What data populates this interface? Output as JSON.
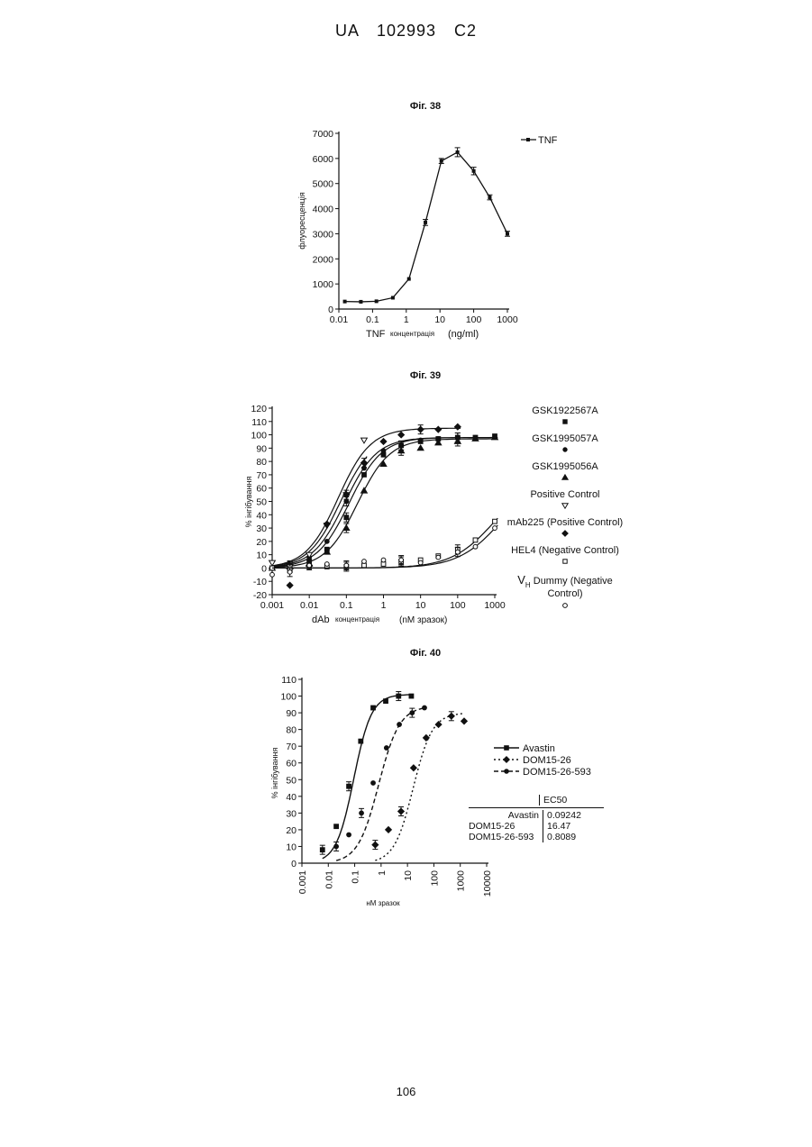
{
  "header": "UA   102993   C2",
  "page_number": "106",
  "chart_data": [
    {
      "caption": "Фіг. 38",
      "type": "line",
      "xscale": "log",
      "xlim": [
        0.01,
        1000
      ],
      "ylim": [
        0,
        7000
      ],
      "xticks": [
        "0.01",
        "0.1",
        "1",
        "10",
        "100",
        "1000"
      ],
      "yticks": [
        "0",
        "1000",
        "2000",
        "3000",
        "4000",
        "5000",
        "6000",
        "7000"
      ],
      "xlabel_prefix": "TNF",
      "xlabel": "концентрація",
      "xlabel_unit": "(ng/ml)",
      "ylabel": "флуоресценція",
      "legend_position": "top-right",
      "series": [
        {
          "name": "TNF",
          "x": [
            0.015,
            0.045,
            0.13,
            0.4,
            1.2,
            3.7,
            11,
            33,
            100,
            300,
            1000
          ],
          "y": [
            300,
            290,
            310,
            450,
            1200,
            3450,
            5900,
            6250,
            5500,
            4450,
            3000
          ],
          "err": [
            0,
            0,
            0,
            0,
            0,
            120,
            100,
            180,
            150,
            100,
            100
          ]
        }
      ]
    },
    {
      "caption": "Фіг. 39",
      "type": "scatter",
      "xscale": "log",
      "xlim": [
        0.001,
        1000
      ],
      "ylim": [
        -20,
        120
      ],
      "xticks": [
        "0.001",
        "0.01",
        "0.1",
        "1",
        "10",
        "100",
        "1000"
      ],
      "yticks": [
        "-20",
        "-10",
        "0",
        "10",
        "20",
        "30",
        "40",
        "50",
        "60",
        "70",
        "80",
        "90",
        "100",
        "110",
        "120"
      ],
      "xlabel_prefix": "dAb",
      "xlabel": "концентрація",
      "xlabel_unit": "(nM   зразок)",
      "ylabel": "% інгібування",
      "legend_position": "right",
      "series": [
        {
          "name": "GSK1922567A",
          "marker": "square",
          "x": [
            0.001,
            0.003,
            0.01,
            0.03,
            0.1,
            0.3,
            1,
            3,
            10,
            30,
            100,
            300,
            1000
          ],
          "y": [
            0,
            1,
            5,
            14,
            38,
            70,
            85,
            92,
            95,
            97,
            98,
            98,
            99
          ],
          "fit_top": 98,
          "fit_ec50": 0.12,
          "fit_hill": 1.0
        },
        {
          "name": "GSK1995057A",
          "marker": "circle",
          "x": [
            0.001,
            0.003,
            0.01,
            0.03,
            0.1,
            0.3,
            1,
            3,
            10,
            30,
            100
          ],
          "y": [
            0,
            2,
            8,
            20,
            50,
            75,
            88,
            92,
            96,
            97,
            98
          ],
          "fit_top": 98,
          "fit_ec50": 0.09,
          "fit_hill": 1.0
        },
        {
          "name": "GSK1995056A",
          "marker": "triangle",
          "x": [
            0.001,
            0.003,
            0.01,
            0.03,
            0.1,
            0.3,
            1,
            3,
            10,
            30,
            100,
            300,
            1000
          ],
          "y": [
            0,
            1,
            3,
            12,
            30,
            58,
            78,
            88,
            90,
            94,
            95,
            97,
            98
          ],
          "fit_top": 97,
          "fit_ec50": 0.2,
          "fit_hill": 1.0
        },
        {
          "name": "Positive Control",
          "marker": "triangle-down-open",
          "x": [
            0.001,
            0.003,
            0.01,
            0.03,
            0.1,
            0.3
          ],
          "y": [
            4,
            1,
            10,
            32,
            55,
            96
          ],
          "fit_top": 100,
          "fit_ec50": 0.07,
          "fit_hill": 1.0
        },
        {
          "name": "mAb225 (Positive Control)",
          "marker": "diamond",
          "x": [
            0.003,
            0.01,
            0.03,
            0.1,
            0.3,
            1,
            3,
            10,
            30,
            100
          ],
          "y": [
            -13,
            2,
            33,
            55,
            79,
            95,
            100,
            104,
            104,
            106
          ],
          "fit_top": 105,
          "fit_ec50": 0.06,
          "fit_hill": 1.0
        },
        {
          "name": "HEL4 (Negative Control)",
          "marker": "square-open",
          "x": [
            0.001,
            0.003,
            0.01,
            0.03,
            0.1,
            0.3,
            1,
            3,
            10,
            30,
            100,
            300,
            1000
          ],
          "y": [
            0,
            0,
            1,
            1,
            1,
            2,
            3,
            5,
            6,
            9,
            14,
            21,
            35
          ],
          "fit_top": 70,
          "fit_ec50": 1000,
          "fit_hill": 0.75
        },
        {
          "name": "Vₕ Dummy (Negative Control)",
          "marker": "circle-open",
          "x": [
            0.001,
            0.003,
            0.01,
            0.03,
            0.1,
            0.3,
            1,
            3,
            10,
            30,
            100,
            300,
            1000
          ],
          "y": [
            -5,
            -3,
            2,
            3,
            2,
            5,
            6,
            6,
            4,
            8,
            12,
            16,
            30
          ],
          "fit_top": 70,
          "fit_ec50": 1500,
          "fit_hill": 0.75
        }
      ],
      "legend_labels": [
        [
          "GSK1922567A"
        ],
        [
          "GSK1995057A"
        ],
        [
          "GSK1995056A"
        ],
        [
          "Positive Control"
        ],
        [
          "mAb225 (Positive Control)"
        ],
        [
          "HEL4 (Negative Control)"
        ],
        [
          "V",
          "H",
          " Dummy (Negative",
          "Control)"
        ]
      ]
    },
    {
      "caption": "Фіг. 40",
      "type": "scatter",
      "xscale": "log",
      "xlim": [
        0.001,
        10000
      ],
      "ylim": [
        0,
        110
      ],
      "xticks": [
        "0.001",
        "0.01",
        "0.1",
        "1",
        "10",
        "100",
        "1000",
        "10000"
      ],
      "yticks": [
        "0",
        "10",
        "20",
        "30",
        "40",
        "50",
        "60",
        "70",
        "80",
        "90",
        "100",
        "110"
      ],
      "xlabel": "нМ  зразок",
      "ylabel": "% інгібування",
      "legend_position": "right",
      "series": [
        {
          "name": "Avastin",
          "marker": "square",
          "line": "solid",
          "x": [
            0.006,
            0.02,
            0.06,
            0.17,
            0.5,
            1.5,
            4.6,
            14
          ],
          "y": [
            8,
            22,
            46,
            73,
            93,
            97,
            100,
            100
          ],
          "fit_top": 101,
          "fit_ec50": 0.09242,
          "fit_hill": 1.3
        },
        {
          "name": "DOM15-26",
          "marker": "diamond",
          "line": "dotted",
          "x": [
            0.6,
            1.9,
            5.7,
            17,
            51,
            150,
            460,
            1400
          ],
          "y": [
            11,
            20,
            31,
            57,
            75,
            83,
            88,
            85
          ],
          "fit_top": 90,
          "fit_ec50": 16.47,
          "fit_hill": 1.2
        },
        {
          "name": "DOM15-26-593",
          "marker": "circle",
          "line": "dashed",
          "x": [
            0.02,
            0.06,
            0.18,
            0.5,
            1.6,
            4.9,
            15,
            44
          ],
          "y": [
            10,
            17,
            30,
            48,
            69,
            83,
            90,
            93
          ],
          "fit_top": 94,
          "fit_ec50": 0.8089,
          "fit_hill": 1.1
        }
      ],
      "ec50_table": {
        "header": [
          "",
          "EC50"
        ],
        "rows": [
          [
            "Avastin",
            "0.09242"
          ],
          [
            "DOM15-26",
            "16.47"
          ],
          [
            "DOM15-26-593",
            "0.8089"
          ]
        ]
      }
    }
  ]
}
